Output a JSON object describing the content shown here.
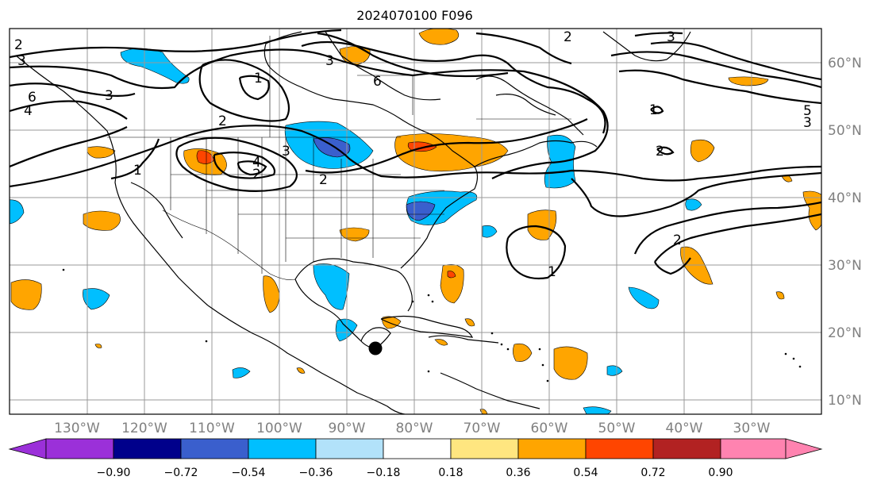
{
  "title": "2024070100 F096",
  "lon_labels": [
    "130°W",
    "120°W",
    "110°W",
    "100°W",
    "90°W",
    "80°W",
    "70°W",
    "60°W",
    "50°W",
    "40°W",
    "30°W"
  ],
  "lat_labels": [
    "60°N",
    "50°N",
    "40°N",
    "30°N",
    "20°N",
    "10°N"
  ],
  "contour_labels": [
    "2",
    "3",
    "6",
    "4",
    "3",
    "1",
    "2",
    "3",
    "4",
    "2",
    "1",
    "2",
    "6",
    "3",
    "5",
    "3",
    "1",
    "2",
    "2",
    "1",
    "3",
    "2"
  ],
  "colorbar": {
    "ticks": [
      "−0.90",
      "−0.72",
      "−0.54",
      "−0.36",
      "−0.18",
      "0.18",
      "0.36",
      "0.54",
      "0.72",
      "0.90"
    ],
    "colors": [
      "#9b30d9",
      "#00008b",
      "#3a5fcd",
      "#00bfff",
      "#b2e2fa",
      "#ffffff",
      "#ffe680",
      "#ffa500",
      "#ff4500",
      "#b22222",
      "#ff83b0"
    ]
  },
  "colors": {
    "contour": "#000000",
    "grid": "#999999",
    "coast": "#000000"
  }
}
